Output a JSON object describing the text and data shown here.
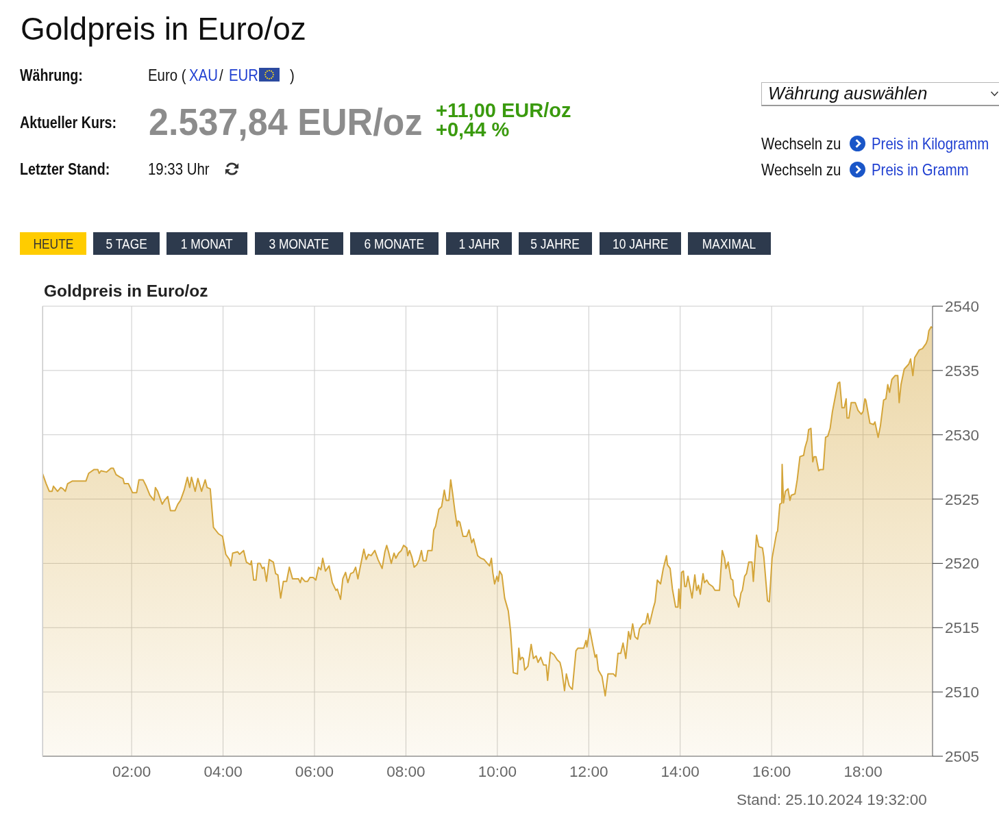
{
  "chart_data": {
    "type": "area",
    "title": "Goldpreis in Euro/oz",
    "annotations": [
      "Goldpreis in Euro/oz",
      "Währung:",
      "Euro (",
      "XAU",
      "/",
      "EUR",
      ")",
      "Aktueller Kurs:",
      "2.537,84 EUR/oz",
      "+11,00 EUR/oz",
      "+0,44 %",
      "Letzter Stand:",
      "19:33 Uhr",
      "Währung auswählen",
      "Wechseln zu",
      "Preis in Kilogramm",
      "Wechseln zu",
      "Preis in Gramm",
      "HEUTE",
      "5 TAGE",
      "1 MONAT",
      "3 MONATE",
      "6 MONATE",
      "1 JAHR",
      "5 JAHRE",
      "10 JAHRE",
      "MAXIMAL",
      "Stand: 25.10.2024 19:32:00"
    ],
    "x": [
      0.05,
      0.13,
      0.2,
      0.26,
      0.29,
      0.38,
      0.45,
      0.5,
      0.55,
      0.6,
      0.7,
      1.0,
      1.06,
      1.18,
      1.26,
      1.29,
      1.33,
      1.45,
      1.55,
      1.6,
      1.66,
      1.75,
      1.81,
      1.84,
      1.93,
      2.02,
      2.11,
      2.16,
      2.25,
      2.32,
      2.4,
      2.49,
      2.52,
      2.57,
      2.67,
      2.72,
      2.79,
      2.85,
      2.95,
      3.01,
      3.07,
      3.15,
      3.22,
      3.27,
      3.31,
      3.39,
      3.45,
      3.53,
      3.61,
      3.65,
      3.72,
      3.79,
      3.9,
      3.99,
      4.06,
      4.14,
      4.17,
      4.21,
      4.32,
      4.36,
      4.45,
      4.51,
      4.6,
      4.62,
      4.67,
      4.72,
      4.76,
      4.81,
      4.86,
      4.9,
      4.95,
      5.01,
      5.1,
      5.15,
      5.2,
      5.26,
      5.32,
      5.39,
      5.45,
      5.52,
      5.65,
      5.69,
      5.72,
      5.79,
      5.85,
      5.9,
      5.97,
      6.03,
      6.09,
      6.14,
      6.18,
      6.24,
      6.32,
      6.39,
      6.47,
      6.5,
      6.57,
      6.62,
      6.68,
      6.73,
      6.79,
      6.85,
      6.9,
      6.95,
      7.0,
      7.08,
      7.13,
      7.18,
      7.24,
      7.32,
      7.39,
      7.48,
      7.54,
      7.58,
      7.62,
      7.68,
      7.74,
      7.78,
      7.84,
      7.9,
      7.95,
      8.02,
      8.04,
      8.08,
      8.13,
      8.18,
      8.24,
      8.29,
      8.34,
      8.38,
      8.44,
      8.48,
      8.57,
      8.61,
      8.65,
      8.72,
      8.78,
      8.84,
      8.88,
      8.94,
      8.98,
      9.02,
      9.07,
      9.12,
      9.14,
      9.18,
      9.25,
      9.33,
      9.38,
      9.44,
      9.48,
      9.57,
      9.64,
      9.71,
      9.78,
      9.83,
      9.87,
      9.9,
      9.94,
      9.99,
      10.02,
      10.05,
      10.1,
      10.16,
      10.24,
      10.29,
      10.35,
      10.44,
      10.47,
      10.5,
      10.54,
      10.57,
      10.6,
      10.67,
      10.74,
      10.79,
      10.85,
      10.89,
      10.95,
      11.01,
      11.07,
      11.1,
      11.16,
      11.24,
      11.31,
      11.37,
      11.41,
      11.47,
      11.51,
      11.57,
      11.61,
      11.64,
      11.72,
      11.76,
      11.89,
      11.94,
      11.96,
      12.02,
      12.09,
      12.14,
      12.17,
      12.21,
      12.29,
      12.36,
      12.42,
      12.54,
      12.59,
      12.64,
      12.7,
      12.75,
      12.81,
      12.87,
      12.91,
      12.96,
      13.01,
      13.07,
      13.11,
      13.19,
      13.24,
      13.29,
      13.33,
      13.41,
      13.45,
      13.5,
      13.57,
      13.63,
      13.7,
      13.72,
      13.78,
      13.83,
      13.9,
      13.95,
      13.97,
      14.0,
      14.03,
      14.07,
      14.1,
      14.13,
      14.17,
      14.26,
      14.32,
      14.36,
      14.4,
      14.44,
      14.5,
      14.53,
      14.58,
      14.63,
      14.71,
      14.76,
      14.86,
      14.92,
      14.97,
      15.0,
      15.05,
      15.11,
      15.15,
      15.18,
      15.23,
      15.28,
      15.33,
      15.36,
      15.41,
      15.45,
      15.5,
      15.57,
      15.6,
      15.67,
      15.72,
      15.8,
      15.83,
      15.91,
      15.95,
      16.01,
      16.11,
      16.13,
      16.18,
      16.22,
      16.23,
      16.26,
      16.3,
      16.36,
      16.4,
      16.43,
      16.51,
      16.56,
      16.62,
      16.7,
      16.73,
      16.78,
      16.81,
      16.86,
      16.9,
      16.93,
      16.97,
      17.03,
      17.07,
      17.13,
      17.18,
      17.23,
      17.28,
      17.33,
      17.4,
      17.45,
      17.49,
      17.54,
      17.59,
      17.63,
      17.65,
      17.69,
      17.74,
      17.83,
      17.89,
      17.96,
      18.0,
      18.04,
      18.06,
      18.15,
      18.23,
      18.26,
      18.33,
      18.38,
      18.45,
      18.5,
      18.54,
      18.58,
      18.63,
      18.7,
      18.76,
      18.79,
      18.83,
      18.9,
      19.0,
      19.04,
      19.09,
      19.13,
      19.18,
      19.23,
      19.3,
      19.38,
      19.41,
      19.44,
      19.49,
      19.51
    ],
    "color": "#d4a53a",
    "values": [
      2527.0,
      2526.2,
      2525.6,
      2525.6,
      2526.0,
      2525.6,
      2525.9,
      2525.8,
      2525.6,
      2526.2,
      2526.4,
      2526.4,
      2527.0,
      2527.3,
      2527.3,
      2527.0,
      2527.2,
      2527.1,
      2527.4,
      2527.4,
      2526.9,
      2526.7,
      2526.6,
      2526.2,
      2526.2,
      2525.5,
      2525.5,
      2526.5,
      2526.5,
      2526.0,
      2525.3,
      2524.9,
      2525.9,
      2525.6,
      2524.6,
      2524.9,
      2525.2,
      2524.1,
      2524.1,
      2524.6,
      2524.9,
      2525.7,
      2526.7,
      2525.9,
      2526.7,
      2525.6,
      2526.6,
      2525.6,
      2526.5,
      2525.9,
      2525.8,
      2522.8,
      2522.3,
      2522.1,
      2520.7,
      2520.3,
      2519.8,
      2520.8,
      2520.9,
      2520.7,
      2521.0,
      2520.1,
      2519.9,
      2520.2,
      2518.7,
      2518.7,
      2520.0,
      2520.0,
      2519.6,
      2519.7,
      2518.6,
      2520.3,
      2520.1,
      2519.2,
      2519.1,
      2517.3,
      2518.6,
      2518.6,
      2519.7,
      2518.8,
      2518.8,
      2518.5,
      2518.9,
      2518.6,
      2518.6,
      2518.9,
      2518.9,
      2518.7,
      2519.7,
      2519.5,
      2520.4,
      2519.4,
      2519.8,
      2518.5,
      2517.9,
      2518.0,
      2517.2,
      2518.8,
      2519.3,
      2518.5,
      2519.2,
      2519.3,
      2519.7,
      2518.8,
      2519.7,
      2521.1,
      2520.3,
      2520.7,
      2520.6,
      2521.0,
      2520.3,
      2519.6,
      2520.9,
      2521.4,
      2520.9,
      2520.0,
      2520.8,
      2520.4,
      2520.8,
      2521.0,
      2521.4,
      2521.2,
      2520.6,
      2521.0,
      2520.5,
      2519.7,
      2519.9,
      2520.3,
      2521.0,
      2520.2,
      2520.2,
      2521.0,
      2521.0,
      2522.6,
      2522.9,
      2524.2,
      2524.4,
      2525.7,
      2524.9,
      2524.9,
      2526.5,
      2525.5,
      2524.1,
      2522.9,
      2523.3,
      2523.2,
      2522.1,
      2522.1,
      2522.6,
      2521.6,
      2521.9,
      2520.6,
      2520.4,
      2520.3,
      2520.0,
      2519.8,
      2520.4,
      2519.3,
      2518.4,
      2519.0,
      2518.6,
      2519.4,
      2519.1,
      2517.3,
      2516.3,
      2514.7,
      2511.5,
      2511.4,
      2513.4,
      2512.5,
      2512.7,
      2512.6,
      2511.7,
      2512.0,
      2513.7,
      2512.6,
      2512.8,
      2512.3,
      2512.7,
      2512.1,
      2512.1,
      2510.9,
      2513.1,
      2512.9,
      2512.5,
      2512.3,
      2511.7,
      2510.1,
      2511.4,
      2510.5,
      2510.3,
      2510.2,
      2513.2,
      2513.4,
      2513.4,
      2514.0,
      2513.5,
      2514.9,
      2513.6,
      2512.7,
      2512.9,
      2511.7,
      2511.2,
      2509.7,
      2511.4,
      2511.4,
      2511.2,
      2513.0,
      2513.0,
      2513.8,
      2512.6,
      2514.7,
      2514.1,
      2515.3,
      2514.3,
      2514.1,
      2514.9,
      2515.3,
      2515.3,
      2516.1,
      2515.3,
      2516.5,
      2517.0,
      2518.7,
      2518.4,
      2519.6,
      2520.6,
      2519.9,
      2519.6,
      2518.0,
      2516.6,
      2516.6,
      2518.0,
      2516.5,
      2519.3,
      2519.4,
      2518.2,
      2518.2,
      2519.0,
      2517.3,
      2519.1,
      2517.9,
      2518.3,
      2517.6,
      2519.2,
      2518.5,
      2518.7,
      2518.4,
      2518.2,
      2517.9,
      2517.9,
      2521.0,
      2520.4,
      2519.6,
      2520.1,
      2518.8,
      2518.7,
      2517.5,
      2517.2,
      2516.6,
      2517.7,
      2517.9,
      2519.0,
      2519.2,
      2520.1,
      2520.1,
      2518.6,
      2522.2,
      2521.3,
      2521.2,
      2520.5,
      2517.1,
      2517.0,
      2520.4,
      2522.4,
      2522.5,
      2524.6,
      2524.7,
      2527.7,
      2524.7,
      2525.6,
      2525.8,
      2524.9,
      2525.3,
      2525.4,
      2526.5,
      2528.3,
      2528.4,
      2529.0,
      2529.6,
      2530.4,
      2530.5,
      2527.9,
      2528.3,
      2528.3,
      2527.2,
      2527.3,
      2527.3,
      2529.8,
      2529.9,
      2530.5,
      2531.8,
      2533.1,
      2534.0,
      2534.1,
      2532.1,
      2532.1,
      2532.8,
      2531.3,
      2531.3,
      2532.5,
      2532.5,
      2531.9,
      2531.6,
      2531.8,
      2532.8,
      2532.7,
      2530.9,
      2530.8,
      2531.0,
      2529.8,
      2530.7,
      2532.7,
      2532.8,
      2533.9,
      2533.3,
      2534.3,
      2534.6,
      2534.6,
      2532.5,
      2533.9,
      2535.1,
      2535.5,
      2535.9,
      2534.6,
      2536.0,
      2536.3,
      2536.6,
      2536.7,
      2537.1,
      2537.4,
      2538.1,
      2538.4,
      2538.3
    ],
    "xlim": [
      0.05,
      19.52
    ],
    "xticks": [
      {
        "value": 2,
        "label": "02:00"
      },
      {
        "value": 4,
        "label": "04:00"
      },
      {
        "value": 6,
        "label": "06:00"
      },
      {
        "value": 8,
        "label": "08:00"
      },
      {
        "value": 10,
        "label": "10:00"
      },
      {
        "value": 12,
        "label": "12:00"
      },
      {
        "value": 14,
        "label": "14:00"
      },
      {
        "value": 16,
        "label": "16:00"
      },
      {
        "value": 18,
        "label": "18:00"
      }
    ],
    "ylim": [
      2505,
      2540
    ],
    "yticks": [
      2505,
      2510,
      2515,
      2520,
      2525,
      2530,
      2535,
      2540
    ],
    "grid": true
  }
}
